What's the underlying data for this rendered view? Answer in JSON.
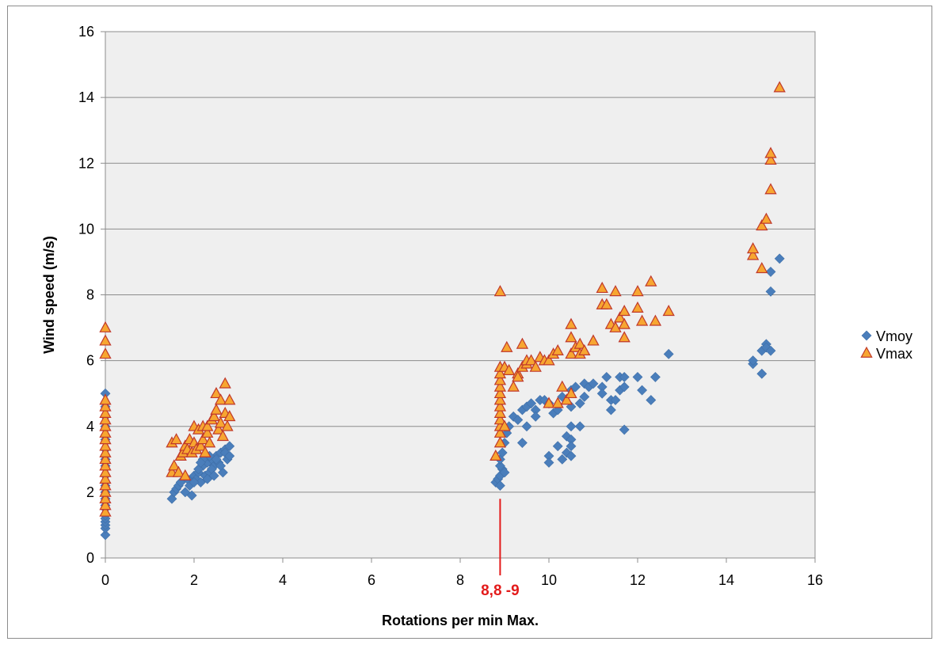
{
  "chart_data": {
    "type": "scatter",
    "title": "",
    "xlabel": "Rotations per min Max.",
    "ylabel": "Wind speed (m/s)",
    "xlim": [
      0,
      16
    ],
    "ylim": [
      0,
      16
    ],
    "x_ticks": [
      "0",
      "2",
      "4",
      "6",
      "8",
      "10",
      "12",
      "14",
      "16"
    ],
    "y_ticks": [
      "0",
      "2",
      "4",
      "6",
      "8",
      "10",
      "12",
      "14",
      "16"
    ],
    "grid": "horizontal",
    "legend_position": "right",
    "annotation": {
      "text": "8,8 -9",
      "x": 8.9,
      "color": "#e31b1b"
    },
    "series": [
      {
        "name": "Vmoy",
        "marker": "diamond",
        "color": "#4a7ebb",
        "points": [
          [
            0,
            0.7
          ],
          [
            0,
            0.9
          ],
          [
            0,
            1.0
          ],
          [
            0,
            1.1
          ],
          [
            0,
            1.2
          ],
          [
            0,
            1.3
          ],
          [
            0,
            1.5
          ],
          [
            0,
            1.6
          ],
          [
            0,
            1.8
          ],
          [
            0,
            2.0
          ],
          [
            0,
            2.2
          ],
          [
            0,
            2.5
          ],
          [
            0,
            2.8
          ],
          [
            0,
            3.0
          ],
          [
            0,
            3.3
          ],
          [
            0,
            3.6
          ],
          [
            0,
            4.0
          ],
          [
            0,
            4.3
          ],
          [
            0,
            4.6
          ],
          [
            0,
            5.0
          ],
          [
            1.5,
            1.8
          ],
          [
            1.55,
            2.0
          ],
          [
            1.6,
            2.1
          ],
          [
            1.65,
            2.2
          ],
          [
            1.7,
            2.3
          ],
          [
            1.8,
            2.0
          ],
          [
            1.85,
            2.4
          ],
          [
            1.9,
            2.2
          ],
          [
            1.95,
            1.9
          ],
          [
            2.0,
            2.5
          ],
          [
            2.05,
            2.4
          ],
          [
            2.1,
            2.6
          ],
          [
            2.15,
            2.3
          ],
          [
            2.2,
            2.8
          ],
          [
            2.25,
            2.5
          ],
          [
            2.3,
            2.9
          ],
          [
            2.35,
            2.6
          ],
          [
            2.4,
            3.0
          ],
          [
            2.45,
            2.8
          ],
          [
            2.5,
            3.1
          ],
          [
            2.55,
            2.9
          ],
          [
            2.6,
            3.2
          ],
          [
            2.65,
            2.6
          ],
          [
            2.7,
            3.3
          ],
          [
            2.75,
            3.0
          ],
          [
            2.8,
            3.4
          ],
          [
            2.1,
            2.7
          ],
          [
            2.2,
            3.0
          ],
          [
            2.3,
            2.4
          ],
          [
            2.4,
            2.7
          ],
          [
            2.5,
            3.0
          ],
          [
            2.6,
            2.8
          ],
          [
            2.7,
            3.2
          ],
          [
            2.8,
            3.1
          ],
          [
            2.0,
            2.3
          ],
          [
            2.15,
            2.9
          ],
          [
            2.35,
            3.1
          ],
          [
            2.45,
            2.5
          ],
          [
            8.8,
            2.3
          ],
          [
            8.85,
            2.4
          ],
          [
            8.9,
            2.2
          ],
          [
            8.9,
            2.5
          ],
          [
            8.95,
            2.7
          ],
          [
            9.0,
            2.6
          ],
          [
            8.9,
            2.8
          ],
          [
            8.9,
            3.0
          ],
          [
            8.95,
            3.2
          ],
          [
            9.0,
            3.5
          ],
          [
            9.05,
            3.8
          ],
          [
            9.1,
            4.0
          ],
          [
            9.2,
            4.3
          ],
          [
            9.3,
            4.2
          ],
          [
            9.4,
            3.5
          ],
          [
            9.4,
            4.5
          ],
          [
            9.5,
            4.6
          ],
          [
            9.5,
            4.0
          ],
          [
            9.6,
            4.7
          ],
          [
            9.7,
            4.5
          ],
          [
            9.7,
            4.3
          ],
          [
            9.8,
            4.8
          ],
          [
            9.9,
            4.8
          ],
          [
            10.0,
            4.7
          ],
          [
            10.0,
            3.1
          ],
          [
            10.0,
            2.9
          ],
          [
            10.1,
            4.4
          ],
          [
            10.2,
            3.4
          ],
          [
            10.2,
            4.5
          ],
          [
            10.3,
            4.9
          ],
          [
            10.3,
            3.0
          ],
          [
            10.4,
            3.2
          ],
          [
            10.4,
            3.7
          ],
          [
            10.5,
            3.6
          ],
          [
            10.5,
            3.4
          ],
          [
            10.5,
            3.1
          ],
          [
            10.5,
            4.0
          ],
          [
            10.5,
            4.6
          ],
          [
            10.5,
            5.1
          ],
          [
            10.6,
            5.2
          ],
          [
            10.7,
            4.0
          ],
          [
            10.7,
            4.7
          ],
          [
            10.8,
            4.9
          ],
          [
            10.8,
            5.3
          ],
          [
            10.9,
            5.2
          ],
          [
            11.0,
            5.3
          ],
          [
            11.2,
            5.2
          ],
          [
            11.2,
            5.0
          ],
          [
            11.3,
            5.5
          ],
          [
            11.4,
            4.5
          ],
          [
            11.4,
            4.8
          ],
          [
            11.5,
            4.8
          ],
          [
            11.6,
            5.5
          ],
          [
            11.6,
            5.1
          ],
          [
            11.7,
            5.2
          ],
          [
            11.7,
            3.9
          ],
          [
            11.7,
            5.5
          ],
          [
            12.0,
            5.5
          ],
          [
            12.1,
            5.1
          ],
          [
            12.3,
            4.8
          ],
          [
            12.4,
            5.5
          ],
          [
            12.7,
            6.2
          ],
          [
            14.6,
            5.9
          ],
          [
            14.6,
            6.0
          ],
          [
            14.8,
            5.6
          ],
          [
            14.8,
            6.3
          ],
          [
            14.9,
            6.5
          ],
          [
            14.9,
            6.4
          ],
          [
            15.0,
            6.3
          ],
          [
            15.0,
            8.1
          ],
          [
            15.0,
            8.7
          ],
          [
            15.2,
            9.1
          ]
        ]
      },
      {
        "name": "Vmax",
        "marker": "triangle",
        "color": "#f7a631",
        "stroke": "#c0392b",
        "points": [
          [
            0,
            1.4
          ],
          [
            0,
            1.6
          ],
          [
            0,
            1.8
          ],
          [
            0,
            2.0
          ],
          [
            0,
            2.2
          ],
          [
            0,
            2.4
          ],
          [
            0,
            2.6
          ],
          [
            0,
            2.8
          ],
          [
            0,
            3.0
          ],
          [
            0,
            3.2
          ],
          [
            0,
            3.4
          ],
          [
            0,
            3.6
          ],
          [
            0,
            3.8
          ],
          [
            0,
            4.0
          ],
          [
            0,
            4.2
          ],
          [
            0,
            4.4
          ],
          [
            0,
            4.6
          ],
          [
            0,
            4.8
          ],
          [
            0,
            6.2
          ],
          [
            0,
            6.6
          ],
          [
            0,
            7.0
          ],
          [
            1.5,
            2.6
          ],
          [
            1.5,
            3.5
          ],
          [
            1.55,
            2.8
          ],
          [
            1.6,
            3.6
          ],
          [
            1.65,
            2.6
          ],
          [
            1.7,
            3.1
          ],
          [
            1.75,
            3.2
          ],
          [
            1.8,
            3.4
          ],
          [
            1.8,
            2.5
          ],
          [
            1.85,
            3.3
          ],
          [
            1.9,
            3.6
          ],
          [
            1.95,
            3.2
          ],
          [
            2.0,
            3.5
          ],
          [
            2.0,
            4.0
          ],
          [
            2.05,
            3.3
          ],
          [
            2.1,
            3.9
          ],
          [
            2.15,
            3.4
          ],
          [
            2.2,
            3.6
          ],
          [
            2.2,
            4.0
          ],
          [
            2.25,
            3.2
          ],
          [
            2.3,
            3.8
          ],
          [
            2.3,
            4.0
          ],
          [
            2.35,
            3.5
          ],
          [
            2.4,
            4.2
          ],
          [
            2.45,
            4.3
          ],
          [
            2.5,
            4.5
          ],
          [
            2.5,
            5.0
          ],
          [
            2.55,
            3.9
          ],
          [
            2.6,
            4.1
          ],
          [
            2.6,
            4.8
          ],
          [
            2.65,
            3.7
          ],
          [
            2.7,
            4.4
          ],
          [
            2.7,
            5.3
          ],
          [
            2.75,
            4.0
          ],
          [
            2.8,
            4.3
          ],
          [
            2.8,
            4.8
          ],
          [
            8.8,
            3.1
          ],
          [
            8.9,
            3.5
          ],
          [
            8.9,
            3.8
          ],
          [
            8.9,
            4.0
          ],
          [
            8.9,
            4.2
          ],
          [
            8.9,
            4.4
          ],
          [
            8.9,
            4.6
          ],
          [
            8.9,
            4.8
          ],
          [
            8.9,
            5.0
          ],
          [
            8.9,
            5.2
          ],
          [
            8.9,
            5.4
          ],
          [
            8.9,
            5.6
          ],
          [
            8.9,
            5.8
          ],
          [
            8.9,
            8.1
          ],
          [
            9.0,
            5.8
          ],
          [
            9.0,
            4.0
          ],
          [
            9.05,
            6.4
          ],
          [
            9.1,
            5.7
          ],
          [
            9.2,
            5.2
          ],
          [
            9.3,
            5.6
          ],
          [
            9.3,
            5.5
          ],
          [
            9.4,
            6.5
          ],
          [
            9.4,
            5.8
          ],
          [
            9.5,
            5.9
          ],
          [
            9.5,
            6.0
          ],
          [
            9.6,
            6.0
          ],
          [
            9.7,
            5.8
          ],
          [
            9.8,
            6.1
          ],
          [
            9.9,
            6.0
          ],
          [
            10.0,
            6.0
          ],
          [
            10.0,
            4.7
          ],
          [
            10.1,
            6.2
          ],
          [
            10.2,
            6.3
          ],
          [
            10.2,
            4.7
          ],
          [
            10.3,
            5.2
          ],
          [
            10.4,
            4.8
          ],
          [
            10.5,
            5.0
          ],
          [
            10.5,
            6.2
          ],
          [
            10.5,
            6.7
          ],
          [
            10.5,
            7.1
          ],
          [
            10.6,
            6.4
          ],
          [
            10.7,
            6.2
          ],
          [
            10.7,
            6.5
          ],
          [
            10.8,
            6.3
          ],
          [
            11.0,
            6.6
          ],
          [
            11.2,
            7.7
          ],
          [
            11.2,
            8.2
          ],
          [
            11.3,
            7.7
          ],
          [
            11.4,
            7.1
          ],
          [
            11.5,
            7.0
          ],
          [
            11.5,
            8.1
          ],
          [
            11.6,
            7.3
          ],
          [
            11.7,
            6.7
          ],
          [
            11.7,
            7.5
          ],
          [
            11.7,
            7.1
          ],
          [
            12.0,
            7.6
          ],
          [
            12.0,
            8.1
          ],
          [
            12.1,
            7.2
          ],
          [
            12.3,
            8.4
          ],
          [
            12.4,
            7.2
          ],
          [
            12.7,
            7.5
          ],
          [
            14.6,
            9.2
          ],
          [
            14.6,
            9.4
          ],
          [
            14.8,
            10.1
          ],
          [
            14.8,
            8.8
          ],
          [
            14.9,
            10.3
          ],
          [
            15.0,
            11.2
          ],
          [
            15.0,
            12.1
          ],
          [
            15.0,
            12.3
          ],
          [
            15.2,
            14.3
          ]
        ]
      }
    ]
  }
}
